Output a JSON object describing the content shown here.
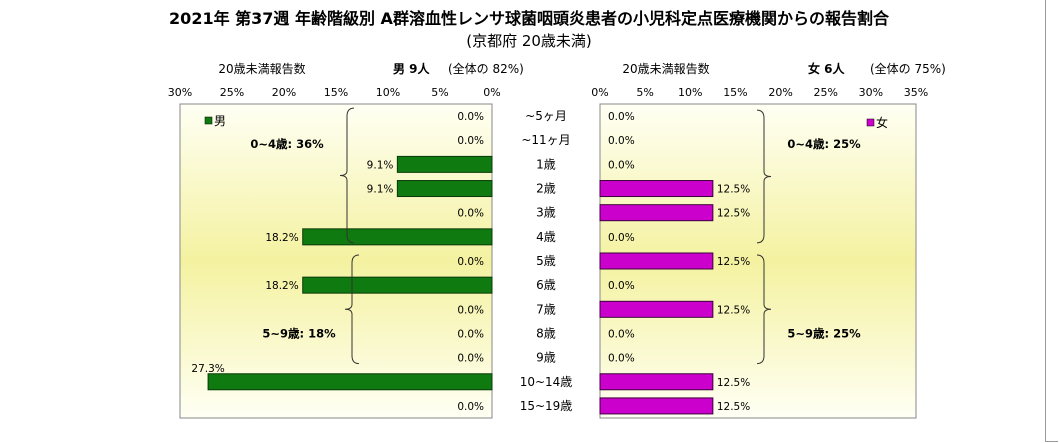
{
  "title": "2021年 第37週 年齢階級別 A群溶血性レンサ球菌咽頭炎患者の小児科定点医療機関からの報告割合",
  "subtitle": "(京都府 20歳未満)",
  "male_header": {
    "count_label": "20歳未満報告数",
    "group": "男 9人",
    "share": "(全体の 82%)"
  },
  "female_header": {
    "count_label": "20歳未満報告数",
    "group": "女 6人",
    "share": "(全体の 75%)"
  },
  "colors": {
    "male": "#0f7a0f",
    "female": "#cc00cc",
    "plot_bg_center": "#f4f2a0",
    "plot_bg_edge": "#fffff4"
  },
  "chart_data": [
    {
      "type": "bar",
      "orientation": "horizontal-reversed",
      "categories": [
        "~5ヶ月",
        "~11ヶ月",
        "1歳",
        "2歳",
        "3歳",
        "4歳",
        "5歳",
        "6歳",
        "7歳",
        "8歳",
        "9歳",
        "10~14歳",
        "15~19歳"
      ],
      "series": [
        {
          "name": "男",
          "values": [
            0,
            0,
            9.1,
            9.1,
            0,
            18.2,
            0,
            18.2,
            0,
            0,
            0,
            27.3,
            0
          ],
          "labels": [
            "0.0%",
            "0.0%",
            "9.1%",
            "9.1%",
            "0.0%",
            "18.2%",
            "0.0%",
            "18.2%",
            "0.0%",
            "0.0%",
            "0.0%",
            "27.3%",
            "0.0%"
          ]
        }
      ],
      "xlim": [
        0,
        30
      ],
      "ticks": [
        "30%",
        "25%",
        "20%",
        "15%",
        "10%",
        "5%",
        "0%"
      ],
      "legend": "top-left",
      "annotations": [
        {
          "text": "0~4歳: 36%",
          "from": 0,
          "to": 5
        },
        {
          "text": "5~9歳: 18%",
          "from": 6,
          "to": 10
        }
      ]
    },
    {
      "type": "bar",
      "orientation": "horizontal",
      "categories": [
        "~5ヶ月",
        "~11ヶ月",
        "1歳",
        "2歳",
        "3歳",
        "4歳",
        "5歳",
        "6歳",
        "7歳",
        "8歳",
        "9歳",
        "10~14歳",
        "15~19歳"
      ],
      "series": [
        {
          "name": "女",
          "values": [
            0,
            0,
            0,
            12.5,
            12.5,
            0,
            12.5,
            0,
            12.5,
            0,
            0,
            12.5,
            12.5
          ],
          "labels": [
            "0.0%",
            "0.0%",
            "0.0%",
            "12.5%",
            "12.5%",
            "0.0%",
            "12.5%",
            "0.0%",
            "12.5%",
            "0.0%",
            "0.0%",
            "12.5%",
            "12.5%"
          ]
        }
      ],
      "xlim": [
        0,
        35
      ],
      "ticks": [
        "0%",
        "5%",
        "10%",
        "15%",
        "20%",
        "25%",
        "30%",
        "35%"
      ],
      "legend": "top-right",
      "annotations": [
        {
          "text": "0~4歳: 25%",
          "from": 0,
          "to": 5
        },
        {
          "text": "5~9歳: 25%",
          "from": 6,
          "to": 10
        }
      ]
    }
  ]
}
